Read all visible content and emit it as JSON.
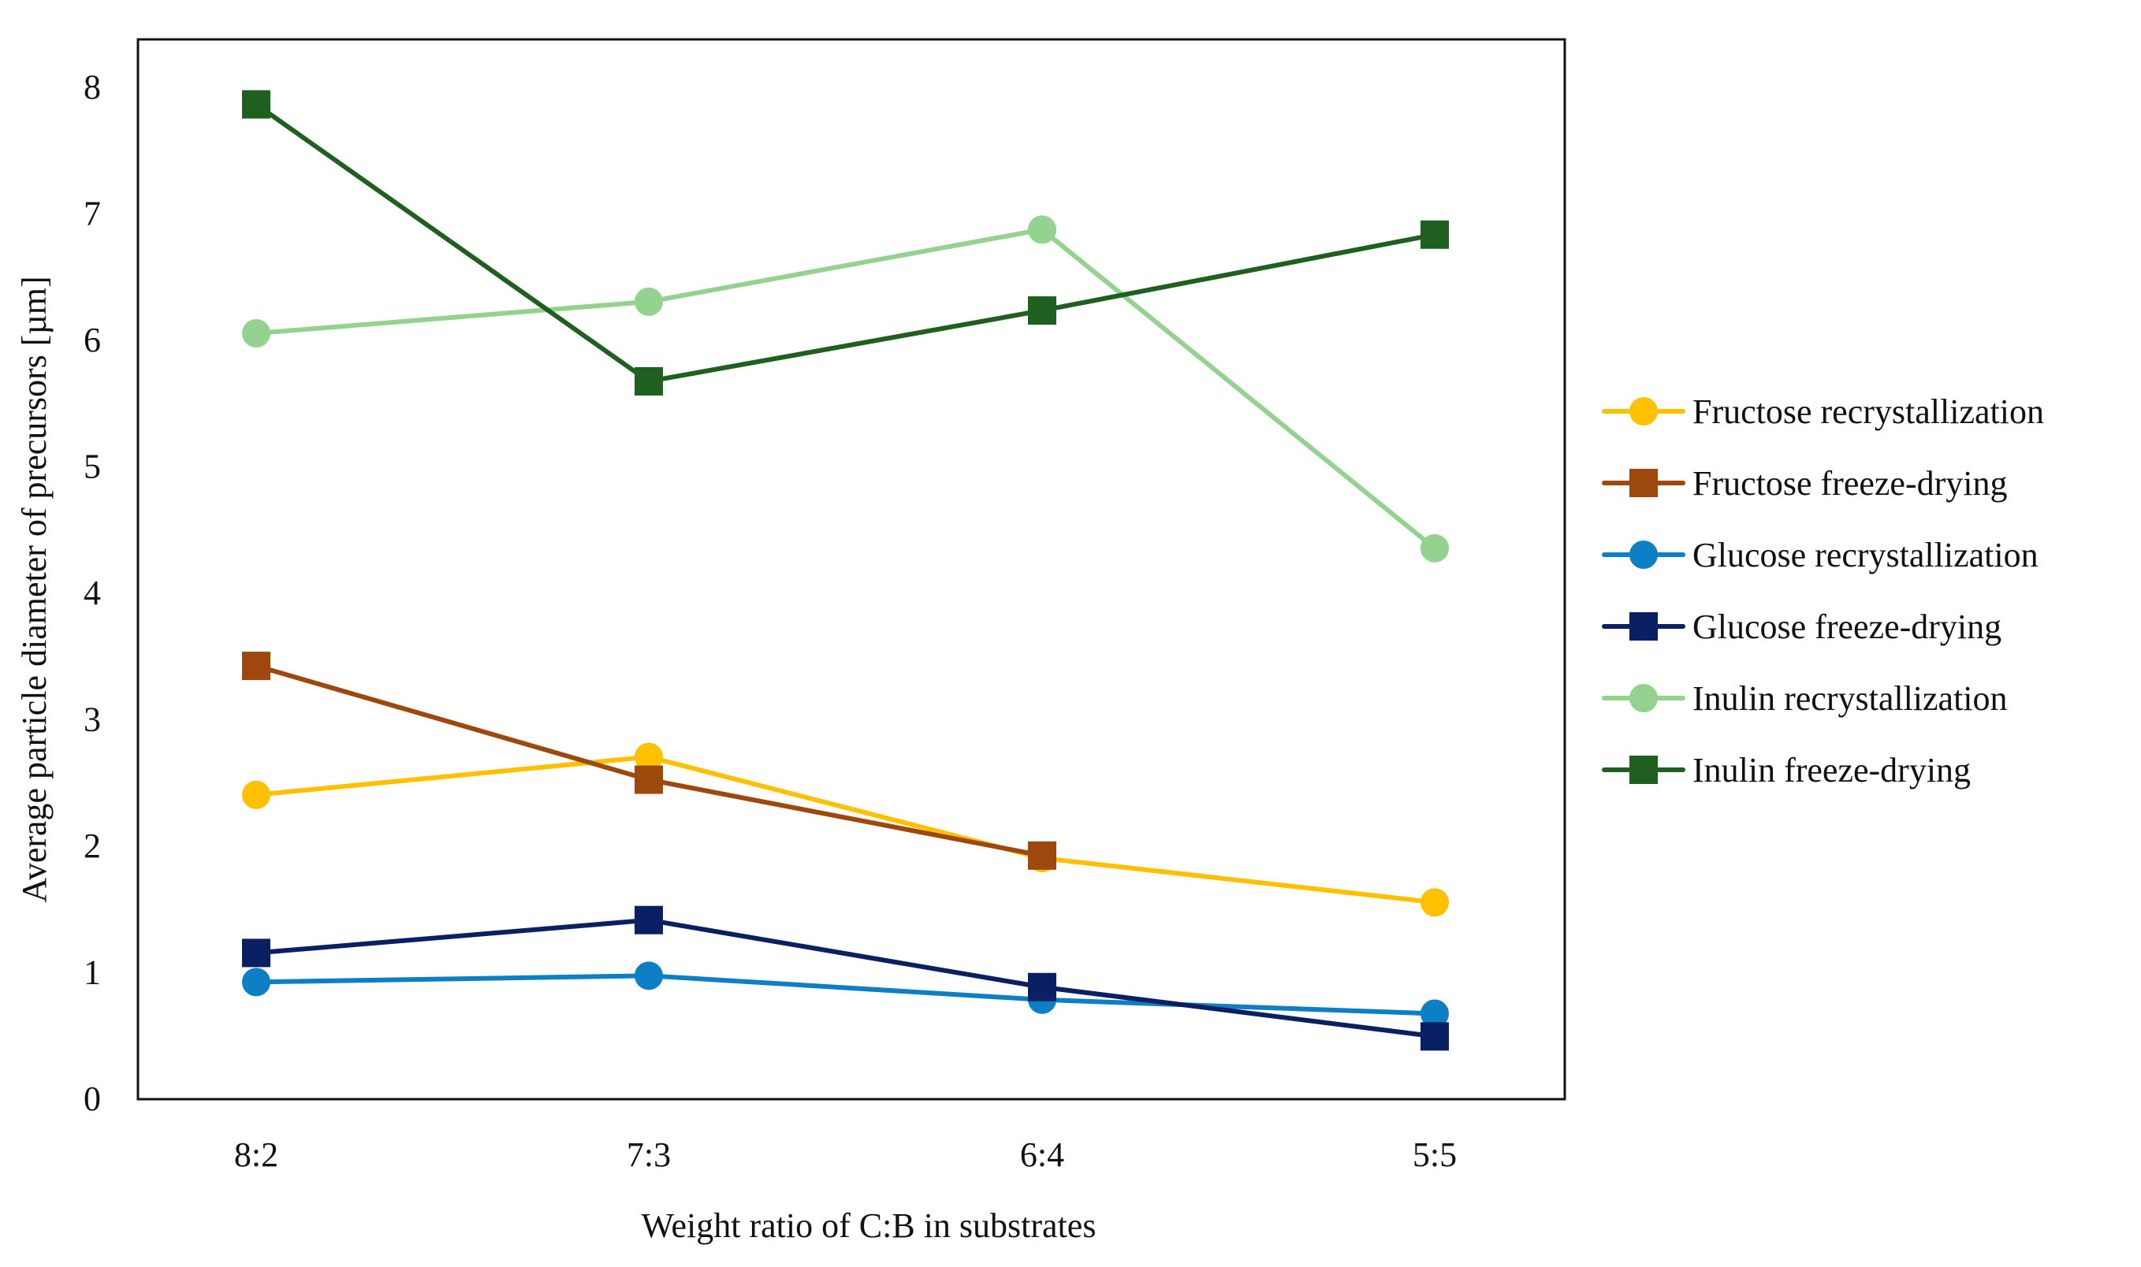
{
  "chart_data": {
    "type": "line",
    "title": "",
    "xlabel": "Weight ratio of C:B in substrates",
    "ylabel": "Average particle diameter of precursors [µm]",
    "categories": [
      "8:2",
      "7:3",
      "6:4",
      "5:5"
    ],
    "ylim": [
      0,
      8
    ],
    "yticks": [
      0,
      1,
      2,
      3,
      4,
      5,
      6,
      7,
      8
    ],
    "grid": false,
    "legend_position": "right",
    "series": [
      {
        "name": "Fructose recrystallization",
        "values": [
          2.4,
          2.7,
          1.9,
          1.55
        ],
        "color": "#FFC000",
        "marker": "circle"
      },
      {
        "name": "Fructose freeze-drying",
        "values": [
          3.42,
          2.52,
          1.92,
          null
        ],
        "color": "#9E480E",
        "marker": "square"
      },
      {
        "name": "Glucose recrystallization",
        "values": [
          0.92,
          0.97,
          0.78,
          0.67
        ],
        "color": "#0D7FC5",
        "marker": "circle"
      },
      {
        "name": "Glucose freeze-drying",
        "values": [
          1.15,
          1.41,
          0.88,
          0.49
        ],
        "color": "#0B1F63",
        "marker": "square"
      },
      {
        "name": "Inulin recrystallization",
        "values": [
          6.05,
          6.3,
          6.87,
          4.35
        ],
        "color": "#93D38F",
        "marker": "circle"
      },
      {
        "name": "Inulin freeze-drying",
        "values": [
          7.86,
          5.67,
          6.23,
          6.83
        ],
        "color": "#1F5F20",
        "marker": "square"
      }
    ]
  }
}
